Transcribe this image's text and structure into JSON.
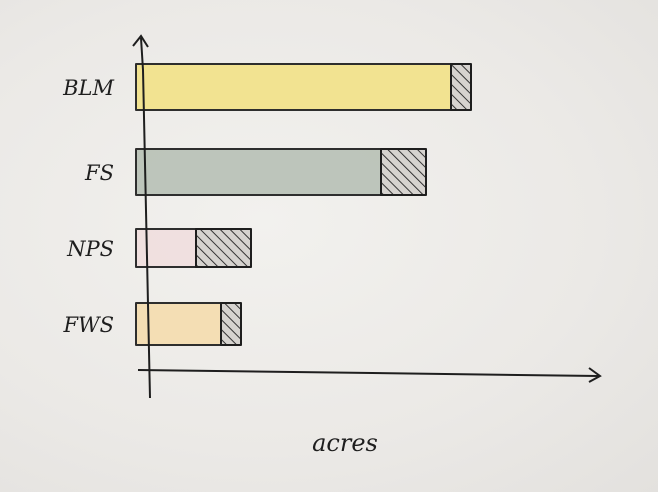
{
  "chart_data": {
    "type": "bar",
    "orientation": "horizontal",
    "stacked": true,
    "categories": [
      "BLM",
      "FS",
      "NPS",
      "FWS"
    ],
    "series": [
      {
        "values": [
          63,
          49,
          12,
          17
        ],
        "colors": [
          "#f3e38a",
          "#b9c2b7",
          "#f1dfdf",
          "#f5ddb0"
        ]
      },
      {
        "values": [
          4,
          9,
          11,
          4
        ],
        "fill": "hatched"
      }
    ],
    "xlabel": "acres",
    "ylabel": "",
    "title": "",
    "xlim": [
      0,
      87
    ],
    "grid": false,
    "legend": "none"
  }
}
